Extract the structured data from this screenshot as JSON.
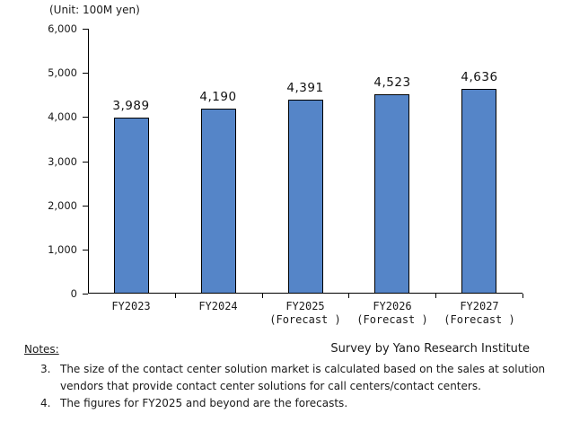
{
  "chart_data": {
    "type": "bar",
    "title": "",
    "unit_label": "(Unit: 100M yen)",
    "categories": [
      [
        "FY2023"
      ],
      [
        "FY2024"
      ],
      [
        "FY2025",
        "(Forecast )"
      ],
      [
        "FY2026",
        "(Forecast )"
      ],
      [
        "FY2027",
        "(Forecast )"
      ]
    ],
    "values": [
      3989,
      4190,
      4391,
      4523,
      4636
    ],
    "value_labels": [
      "3,989",
      "4,190",
      "4,391",
      "4,523",
      "4,636"
    ],
    "xlabel": "",
    "ylabel": "",
    "ylim": [
      0,
      6000
    ],
    "y_ticks": [
      {
        "value": 0,
        "label": "0"
      },
      {
        "value": 1000,
        "label": "1,000"
      },
      {
        "value": 2000,
        "label": "2,000"
      },
      {
        "value": 3000,
        "label": "3,000"
      },
      {
        "value": 4000,
        "label": "4,000"
      },
      {
        "value": 5000,
        "label": "5,000"
      },
      {
        "value": 6000,
        "label": "6,000"
      }
    ],
    "grid": false,
    "legend": "none",
    "colors": {
      "bar_fill": "#5585C8",
      "bar_border": "#000000",
      "axis": "#000000",
      "text": "#1A1A1A"
    }
  },
  "notes": {
    "heading": "Notes:",
    "items": [
      {
        "number": "3.",
        "lines": [
          "The size of the contact center solution market is calculated based on the sales at solution",
          "vendors that provide contact center solutions for call centers/contact centers."
        ]
      },
      {
        "number": "4.",
        "lines": [
          "The figures for FY2025 and beyond are the forecasts."
        ]
      }
    ]
  },
  "footer": {
    "credit": "Survey by Yano Research Institute"
  }
}
